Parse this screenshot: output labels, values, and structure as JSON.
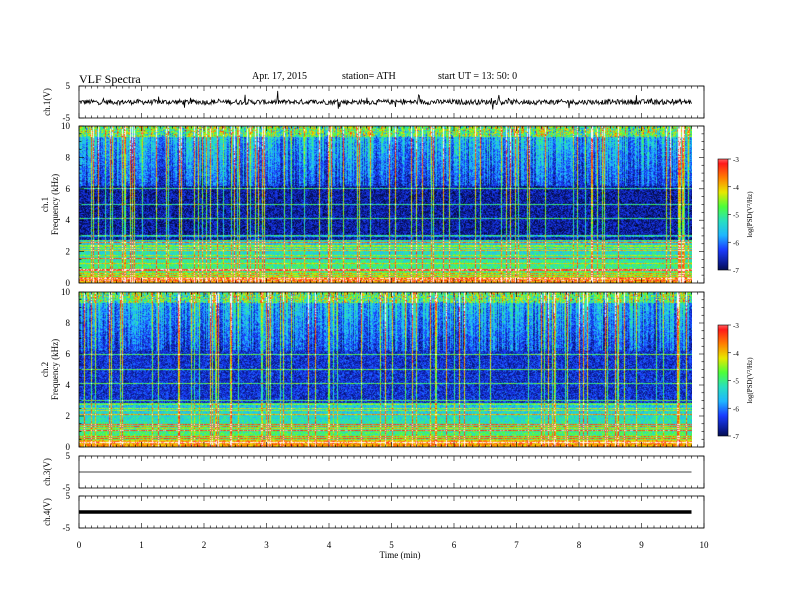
{
  "header": {
    "title": "VLF  Spectra",
    "date": "Apr. 17, 2015",
    "station": "station= ATH",
    "start": "start  UT  =   13: 50: 0"
  },
  "colors": {
    "spectrogram_scale": [
      "#000000",
      "#0a1a8c",
      "#1a3cff",
      "#1fb7ff",
      "#29e0c0",
      "#4dff3a",
      "#e8e800",
      "#ff8000",
      "#ff1a1a",
      "#ffffff"
    ]
  },
  "chart_data": [
    {
      "type": "line",
      "name": "ch1 waveform",
      "ylabel": "ch.1(V)",
      "yticks": [
        "5",
        "-5"
      ],
      "ylim": [
        -5,
        5
      ],
      "xlim": [
        0,
        10
      ],
      "x_end": 9.8,
      "level": 0,
      "amplitude": "noisy, about ±1.5 V"
    },
    {
      "type": "heatmap",
      "name": "ch1 spectrogram",
      "ylabel": "ch.1\nFrequency  (kHz)",
      "ylabel_line1": "ch.1",
      "ylabel_line2": "Frequency  (kHz)",
      "ylim": [
        0,
        10
      ],
      "yticks": [
        "0",
        "2",
        "4",
        "6",
        "8",
        "10"
      ],
      "xlim": [
        0,
        10
      ],
      "x_end": 9.8,
      "colorbar": {
        "label": "log(PSD(V²/Hz)",
        "range": [
          -7,
          -3
        ],
        "ticks": [
          "-3",
          "-4",
          "-5",
          "-6",
          "-7"
        ]
      }
    },
    {
      "type": "heatmap",
      "name": "ch2 spectrogram",
      "ylabel": "ch.2\nFrequency  (kHz)",
      "ylabel_line1": "ch.2",
      "ylabel_line2": "Frequency  (kHz)",
      "ylim": [
        0,
        10
      ],
      "yticks": [
        "0",
        "2",
        "4",
        "6",
        "8",
        "10"
      ],
      "xlim": [
        0,
        10
      ],
      "x_end": 9.8,
      "colorbar": {
        "label": "log(PSD(V²/Hz)",
        "range": [
          -7,
          -3
        ],
        "ticks": [
          "-3",
          "-4",
          "-5",
          "-6",
          "-7"
        ]
      }
    },
    {
      "type": "line",
      "name": "ch3 waveform",
      "ylabel": "ch.3(V)",
      "yticks": [
        "5",
        "-5"
      ],
      "ylim": [
        -5,
        5
      ],
      "xlim": [
        0,
        10
      ],
      "x_end": 9.8,
      "level": 0,
      "amplitude": "flat"
    },
    {
      "type": "line",
      "name": "ch4 waveform",
      "ylabel": "ch.4(V)",
      "yticks": [
        "5",
        "-5"
      ],
      "ylim": [
        -5,
        5
      ],
      "xlim": [
        0,
        10
      ],
      "x_end": 9.8,
      "level": 0,
      "amplitude": "thick flat trace"
    }
  ],
  "x_axis": {
    "label": "Time  (min)",
    "ticks": [
      "0",
      "1",
      "2",
      "3",
      "4",
      "5",
      "6",
      "7",
      "8",
      "9",
      "10"
    ]
  }
}
